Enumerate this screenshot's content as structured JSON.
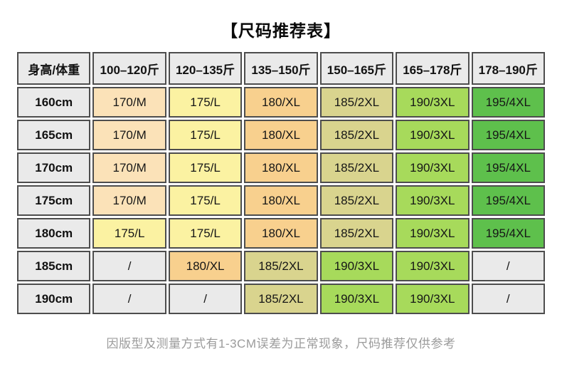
{
  "page": {
    "title": "【尺码推荐表】",
    "footer_note": "因版型及测量方式有1-3CM误差为正常现象，尺码推荐仅供参考"
  },
  "table": {
    "corner_header": "身高/体重",
    "weight_headers": [
      "100–120斤",
      "120–135斤",
      "135–150斤",
      "150–165斤",
      "165–178斤",
      "178–190斤"
    ],
    "rows": [
      {
        "height": "160cm",
        "cells": [
          "170/M",
          "175/L",
          "180/XL",
          "185/2XL",
          "190/3XL",
          "195/4XL"
        ]
      },
      {
        "height": "165cm",
        "cells": [
          "170/M",
          "175/L",
          "180/XL",
          "185/2XL",
          "190/3XL",
          "195/4XL"
        ]
      },
      {
        "height": "170cm",
        "cells": [
          "170/M",
          "175/L",
          "180/XL",
          "185/2XL",
          "190/3XL",
          "195/4XL"
        ]
      },
      {
        "height": "175cm",
        "cells": [
          "170/M",
          "175/L",
          "180/XL",
          "185/2XL",
          "190/3XL",
          "195/4XL"
        ]
      },
      {
        "height": "180cm",
        "cells": [
          "175/L",
          "175/L",
          "180/XL",
          "185/2XL",
          "190/3XL",
          "195/4XL"
        ]
      },
      {
        "height": "185cm",
        "cells": [
          "/",
          "180/XL",
          "185/2XL",
          "190/3XL",
          "190/3XL",
          "/"
        ]
      },
      {
        "height": "190cm",
        "cells": [
          "/",
          "/",
          "185/2XL",
          "190/3XL",
          "190/3XL",
          "/"
        ]
      }
    ]
  },
  "colors": {
    "header_bg": "#eaeaea",
    "border": "#4d4d4d",
    "empty_cell_bg": "#eaeaea",
    "size_colors": {
      "170/M": "#fbe2b8",
      "175/L": "#fbf2a2",
      "180/XL": "#f8d08e",
      "185/2XL": "#d9d48e",
      "190/3XL": "#a7da5b",
      "195/4XL": "#5ec04c",
      "/": "#eaeaea"
    }
  }
}
